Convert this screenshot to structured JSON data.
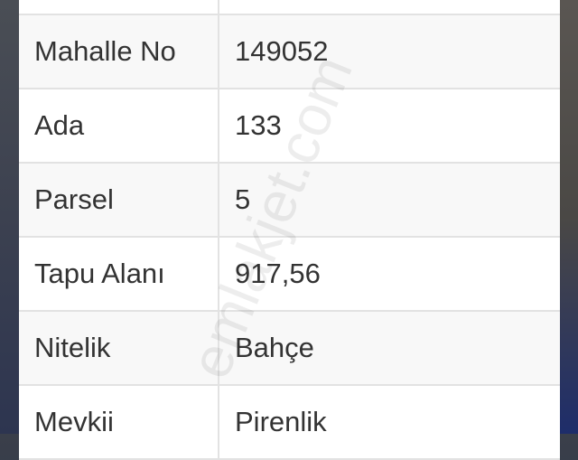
{
  "rows": [
    {
      "label": "",
      "value": ""
    },
    {
      "label": "Mahalle No",
      "value": "149052"
    },
    {
      "label": "Ada",
      "value": "133"
    },
    {
      "label": "Parsel",
      "value": "5"
    },
    {
      "label": "Tapu Alanı",
      "value": "917,56"
    },
    {
      "label": "Nitelik",
      "value": "Bahçe"
    },
    {
      "label": "Mevkii",
      "value": "Pirenlik"
    }
  ],
  "watermark": "emlakjet.com"
}
